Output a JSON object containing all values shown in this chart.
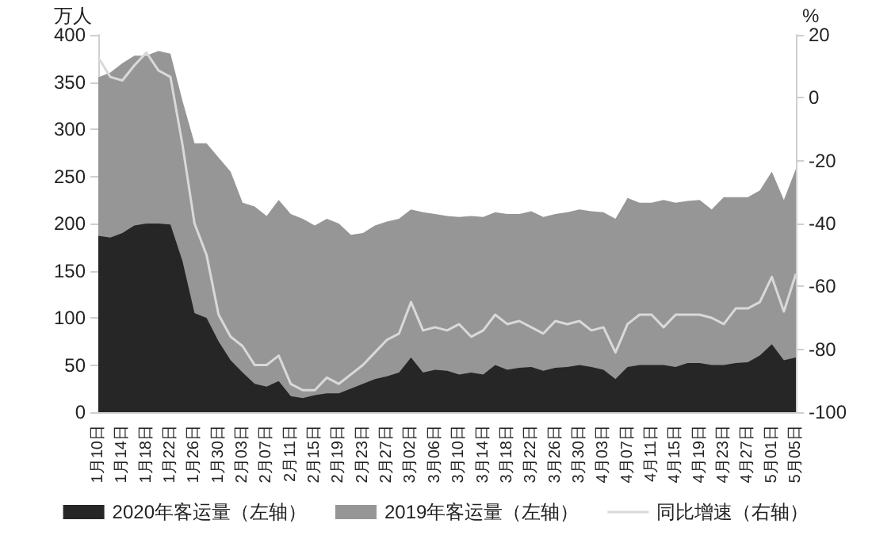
{
  "chart_data": {
    "type": "area",
    "ylabel": "万人",
    "y2label": "%",
    "categories": [
      "1月10日",
      null,
      "1月14日",
      null,
      "1月18日",
      null,
      "1月22日",
      null,
      "1月26日",
      null,
      "1月30日",
      null,
      "2月03日",
      null,
      "2月07日",
      null,
      "2月11日",
      null,
      "2月15日",
      null,
      "2月19日",
      null,
      "2月23日",
      null,
      "2月27日",
      null,
      "3月02日",
      null,
      "3月06日",
      null,
      "3月10日",
      null,
      "3月14日",
      null,
      "3月18日",
      null,
      "3月22日",
      null,
      "3月26日",
      null,
      "3月30日",
      null,
      "4月03日",
      null,
      "4月07日",
      null,
      "4月11日",
      null,
      "4月15日",
      null,
      "4月19日",
      null,
      "4月23日",
      null,
      "4月27日",
      null,
      "5月01日",
      null,
      "5月05日"
    ],
    "series": [
      {
        "name": "2020年客运量（左轴）",
        "color": "#262626",
        "values": [
          187,
          185,
          190,
          198,
          200,
          200,
          199,
          160,
          105,
          100,
          75,
          55,
          42,
          30,
          27,
          33,
          17,
          15,
          18,
          20,
          20,
          25,
          30,
          35,
          38,
          42,
          58,
          42,
          45,
          44,
          40,
          42,
          40,
          50,
          45,
          47,
          48,
          44,
          47,
          48,
          50,
          48,
          45,
          35,
          48,
          50,
          50,
          50,
          48,
          52,
          52,
          50,
          50,
          52,
          53,
          60,
          72,
          55,
          58
        ]
      },
      {
        "name": "2019年客运量（左轴）",
        "color": "#969696",
        "values": [
          355,
          360,
          370,
          378,
          378,
          383,
          380,
          330,
          285,
          285,
          270,
          255,
          222,
          218,
          208,
          225,
          210,
          205,
          198,
          205,
          200,
          188,
          190,
          198,
          202,
          205,
          215,
          212,
          210,
          208,
          207,
          208,
          207,
          212,
          210,
          210,
          213,
          207,
          210,
          212,
          215,
          213,
          212,
          205,
          227,
          222,
          222,
          225,
          222,
          224,
          225,
          215,
          228,
          228,
          228,
          235,
          255,
          225,
          258
        ]
      },
      {
        "name": "同比增速（右轴）",
        "type": "line",
        "axis": "y2",
        "color": "#d9d9d9",
        "values": [
          12.8,
          6.6,
          5.5,
          10.3,
          14.4,
          8.7,
          6.6,
          -15,
          -40,
          -50,
          -69,
          -76,
          -79,
          -85,
          -85,
          -82,
          -91,
          -93,
          -93,
          -89,
          -91,
          -88,
          -85,
          -81,
          -77,
          -75,
          -65,
          -74,
          -73,
          -74,
          -72,
          -76,
          -74,
          -69,
          -72,
          -71,
          -73,
          -75,
          -71,
          -72,
          -71,
          -74,
          -73,
          -81,
          -72,
          -69,
          -69,
          -73,
          -69,
          -69,
          -69,
          -70,
          -72,
          -67,
          -67,
          -65,
          -57,
          -68,
          -56
        ]
      }
    ],
    "ylim": [
      0,
      400
    ],
    "yticks": [
      0,
      50,
      100,
      150,
      200,
      250,
      300,
      350,
      400
    ],
    "y2lim": [
      -100,
      20
    ],
    "y2ticks": [
      -100,
      -80,
      -60,
      -40,
      -20,
      0,
      20
    ],
    "grid": false,
    "legend": "bottom",
    "marker": "none",
    "line_style": "solid"
  }
}
